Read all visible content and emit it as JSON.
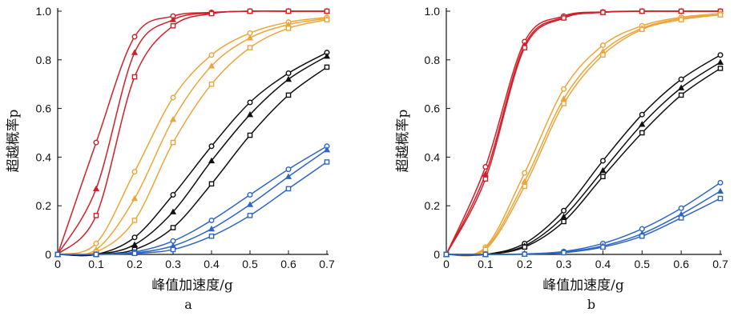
{
  "chart_data": [
    {
      "type": "line",
      "panel": "a",
      "xlabel": "峰值加速度/g",
      "ylabel": "超越概率p",
      "xlim": [
        0,
        0.7
      ],
      "ylim": [
        0,
        1.0
      ],
      "xticks": [
        "0",
        "0.1",
        "0.2",
        "0.3",
        "0.4",
        "0.5",
        "0.6",
        "0.7"
      ],
      "yticks": [
        "0",
        "0.2",
        "0.4",
        "0.6",
        "0.8",
        "1.0"
      ],
      "x": [
        0,
        0.1,
        0.2,
        0.3,
        0.4,
        0.5,
        0.6,
        0.7
      ],
      "series": [
        {
          "name": "red-circle",
          "color": "#d0202a",
          "marker": "circle",
          "values": [
            0,
            0.46,
            0.895,
            0.98,
            0.995,
            1.0,
            1.0,
            1.0
          ]
        },
        {
          "name": "red-triangle",
          "color": "#d0202a",
          "marker": "triangle",
          "values": [
            0,
            0.27,
            0.83,
            0.965,
            0.993,
            1.0,
            1.0,
            1.0
          ]
        },
        {
          "name": "red-square",
          "color": "#d0202a",
          "marker": "square",
          "values": [
            0,
            0.16,
            0.73,
            0.94,
            0.99,
            1.0,
            1.0,
            1.0
          ]
        },
        {
          "name": "yellow-circle",
          "color": "#eaa63a",
          "marker": "circle",
          "values": [
            0,
            0.045,
            0.34,
            0.645,
            0.82,
            0.91,
            0.955,
            0.975
          ]
        },
        {
          "name": "yellow-triangle",
          "color": "#eaa63a",
          "marker": "triangle",
          "values": [
            0,
            0.02,
            0.23,
            0.555,
            0.775,
            0.89,
            0.945,
            0.97
          ]
        },
        {
          "name": "yellow-square",
          "color": "#eaa63a",
          "marker": "square",
          "values": [
            0,
            0.01,
            0.14,
            0.46,
            0.7,
            0.85,
            0.93,
            0.965
          ]
        },
        {
          "name": "black-circle",
          "color": "#111111",
          "marker": "circle",
          "values": [
            0,
            0.0,
            0.07,
            0.245,
            0.445,
            0.625,
            0.745,
            0.83
          ]
        },
        {
          "name": "black-triangle",
          "color": "#111111",
          "marker": "triangle",
          "values": [
            0,
            0.0,
            0.04,
            0.175,
            0.385,
            0.575,
            0.72,
            0.815
          ]
        },
        {
          "name": "black-square",
          "color": "#111111",
          "marker": "square",
          "values": [
            0,
            0.0,
            0.02,
            0.11,
            0.29,
            0.49,
            0.655,
            0.77
          ]
        },
        {
          "name": "blue-circle",
          "color": "#2f65c4",
          "marker": "circle",
          "values": [
            0,
            0.0,
            0.01,
            0.055,
            0.14,
            0.245,
            0.35,
            0.445
          ]
        },
        {
          "name": "blue-triangle",
          "color": "#2f65c4",
          "marker": "triangle",
          "values": [
            0,
            0.0,
            0.006,
            0.035,
            0.105,
            0.205,
            0.32,
            0.43
          ]
        },
        {
          "name": "blue-square",
          "color": "#2f65c4",
          "marker": "square",
          "values": [
            0,
            0.0,
            0.004,
            0.02,
            0.075,
            0.16,
            0.27,
            0.38
          ]
        }
      ]
    },
    {
      "type": "line",
      "panel": "b",
      "xlabel": "峰值加速度/g",
      "ylabel": "超越概率p",
      "xlim": [
        0,
        0.7
      ],
      "ylim": [
        0,
        1.0
      ],
      "xticks": [
        "0",
        "0.1",
        "0.2",
        "0.3",
        "0.4",
        "0.5",
        "0.6",
        "0.7"
      ],
      "yticks": [
        "0",
        "0.2",
        "0.4",
        "0.6",
        "0.8",
        "1.0"
      ],
      "x": [
        0,
        0.1,
        0.2,
        0.3,
        0.4,
        0.5,
        0.6,
        0.7
      ],
      "series": [
        {
          "name": "red-circle",
          "color": "#d0202a",
          "marker": "circle",
          "values": [
            0,
            0.36,
            0.875,
            0.98,
            0.997,
            1.0,
            1.0,
            1.0
          ]
        },
        {
          "name": "red-triangle",
          "color": "#d0202a",
          "marker": "triangle",
          "values": [
            0,
            0.33,
            0.86,
            0.975,
            0.996,
            1.0,
            1.0,
            1.0
          ]
        },
        {
          "name": "red-square",
          "color": "#d0202a",
          "marker": "square",
          "values": [
            0,
            0.31,
            0.85,
            0.972,
            0.995,
            1.0,
            1.0,
            1.0
          ]
        },
        {
          "name": "yellow-circle",
          "color": "#eaa63a",
          "marker": "circle",
          "values": [
            0,
            0.03,
            0.335,
            0.68,
            0.86,
            0.94,
            0.975,
            0.99
          ]
        },
        {
          "name": "yellow-triangle",
          "color": "#eaa63a",
          "marker": "triangle",
          "values": [
            0,
            0.025,
            0.3,
            0.64,
            0.835,
            0.93,
            0.97,
            0.985
          ]
        },
        {
          "name": "yellow-square",
          "color": "#eaa63a",
          "marker": "square",
          "values": [
            0,
            0.02,
            0.28,
            0.62,
            0.82,
            0.925,
            0.965,
            0.985
          ]
        },
        {
          "name": "black-circle",
          "color": "#111111",
          "marker": "circle",
          "values": [
            0,
            0.0,
            0.045,
            0.18,
            0.385,
            0.575,
            0.72,
            0.82
          ]
        },
        {
          "name": "black-triangle",
          "color": "#111111",
          "marker": "triangle",
          "values": [
            0,
            0.0,
            0.035,
            0.155,
            0.345,
            0.535,
            0.685,
            0.79
          ]
        },
        {
          "name": "black-square",
          "color": "#111111",
          "marker": "square",
          "values": [
            0,
            0.0,
            0.03,
            0.135,
            0.32,
            0.5,
            0.655,
            0.765
          ]
        },
        {
          "name": "blue-circle",
          "color": "#2f65c4",
          "marker": "circle",
          "values": [
            0,
            0.0,
            0.002,
            0.012,
            0.045,
            0.105,
            0.19,
            0.295
          ]
        },
        {
          "name": "blue-triangle",
          "color": "#2f65c4",
          "marker": "triangle",
          "values": [
            0,
            0.0,
            0.001,
            0.009,
            0.035,
            0.085,
            0.165,
            0.26
          ]
        },
        {
          "name": "blue-square",
          "color": "#2f65c4",
          "marker": "square",
          "values": [
            0,
            0.0,
            0.001,
            0.007,
            0.03,
            0.075,
            0.15,
            0.23
          ]
        }
      ]
    }
  ]
}
